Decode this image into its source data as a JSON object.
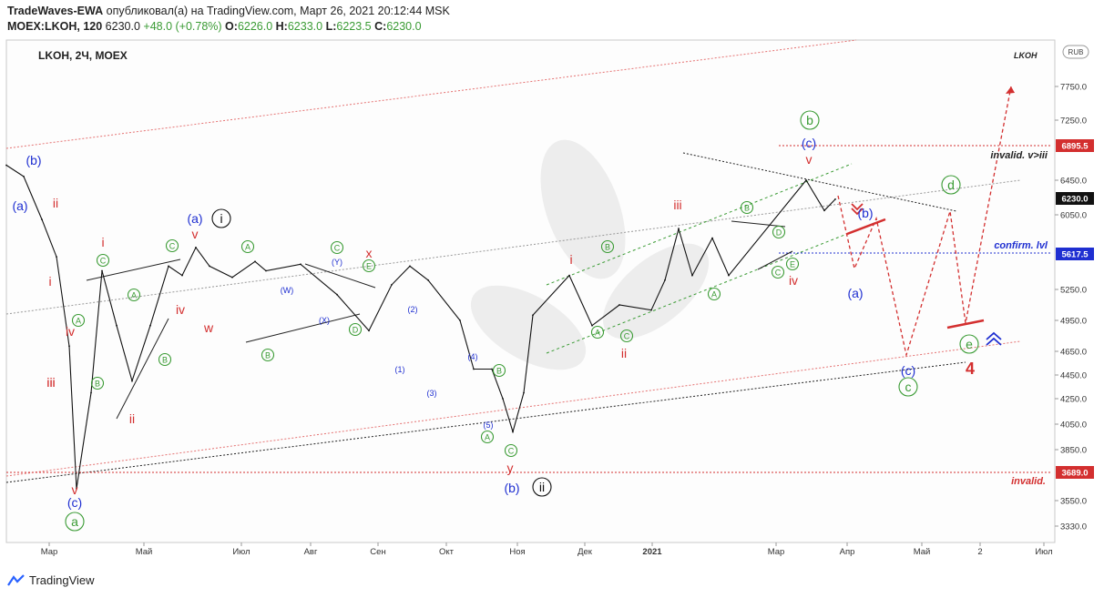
{
  "header": {
    "publisher": "TradeWaves-EWA",
    "published_text": "опубликовал(а) на TradingView.com, Март 26, 2021 20:12:44 MSK",
    "symbol": "MOEX:LKOH, 120",
    "last": "6230.0",
    "change": "+48.0 (+0.78%)",
    "o_label": "O:",
    "o_val": "6226.0",
    "h_label": "H:",
    "h_val": "6233.0",
    "l_label": "L:",
    "l_val": "6223.5",
    "c_label": "C:",
    "c_val": "6230.0"
  },
  "chart_title": "LKOH, 2Ч, MOEX",
  "watermark": "LKOH",
  "currency": "RUB",
  "footer": {
    "brand": "TradingView"
  },
  "colors": {
    "up": "#3a9b34",
    "red": "#d32f2f",
    "blue": "#1f2fd1",
    "green": "#3a9b34"
  },
  "chart_data": {
    "type": "line",
    "series": [
      {
        "values": [
          6650,
          6500,
          6000,
          5600,
          4700,
          3620,
          4300,
          5450,
          4900,
          4400,
          4900,
          5500,
          5400,
          5700,
          5500,
          5380,
          5550,
          5450,
          5520,
          5200,
          4850,
          5300,
          5500,
          5350,
          4950,
          4500,
          4500,
          4250,
          3990,
          4300,
          5000,
          5400,
          4900,
          5100,
          5050,
          5350,
          5900,
          5400,
          5800,
          5400,
          6450,
          6100,
          6230
        ]
      }
    ],
    "y_ticks": [
      "7750.0",
      "7250.0",
      "6450.0",
      "6050.0",
      "5250.0",
      "4950.0",
      "4650.0",
      "4450.0",
      "4250.0",
      "4050.0",
      "3850.0",
      "3550.0",
      "3330.0"
    ],
    "x_ticks": [
      "Мар",
      "Май",
      "Июл",
      "Авг",
      "Сен",
      "Окт",
      "Ноя",
      "Дек",
      "2021",
      "Мар",
      "Апр",
      "Май",
      "2",
      "Июл"
    ],
    "price_tags": [
      {
        "text": "6895.5",
        "color": "#d32f2f"
      },
      {
        "text": "6230.0",
        "color": "#111111"
      },
      {
        "text": "5617.5",
        "color": "#1f2fd1"
      },
      {
        "text": "3689.0",
        "color": "#d32f2f"
      }
    ],
    "level_labels": {
      "invalid_top": "invalid. v>iii",
      "confirm": "confirm. lvl",
      "invalid_bottom": "invalid."
    },
    "annotations": [
      {
        "text": "(b)",
        "color": "blue",
        "circle": false
      },
      {
        "text": "(a)",
        "color": "blue",
        "circle": false
      },
      {
        "text": "ii",
        "color": "red",
        "circle": false
      },
      {
        "text": "i",
        "color": "red",
        "circle": false
      },
      {
        "text": "iv",
        "color": "red",
        "circle": false
      },
      {
        "text": "iii",
        "color": "red",
        "circle": false
      },
      {
        "text": "v",
        "color": "red",
        "circle": false
      },
      {
        "text": "(c)",
        "color": "blue",
        "circle": false
      },
      {
        "text": "a",
        "color": "green",
        "circle": true
      },
      {
        "text": "ii",
        "color": "red",
        "circle": false
      },
      {
        "text": "C",
        "color": "green",
        "circle": true
      },
      {
        "text": "A",
        "color": "green",
        "circle": true
      },
      {
        "text": "B",
        "color": "green",
        "circle": true
      },
      {
        "text": "A",
        "color": "green",
        "circle": true
      },
      {
        "text": "B",
        "color": "green",
        "circle": true
      },
      {
        "text": "i",
        "color": "red",
        "circle": false
      },
      {
        "text": "iii",
        "color": "red",
        "circle": false
      },
      {
        "text": "C",
        "color": "green",
        "circle": true
      },
      {
        "text": "iv",
        "color": "red",
        "circle": false
      },
      {
        "text": "v",
        "color": "red",
        "circle": false
      },
      {
        "text": "(a)",
        "color": "blue",
        "circle": false
      },
      {
        "text": "i",
        "color": "black",
        "circle": true
      },
      {
        "text": "w",
        "color": "red",
        "circle": false
      },
      {
        "text": "A",
        "color": "green",
        "circle": true
      },
      {
        "text": "B",
        "color": "green",
        "circle": true
      },
      {
        "text": "(W)",
        "color": "blue",
        "circle": false
      },
      {
        "text": "(X)",
        "color": "blue",
        "circle": false
      },
      {
        "text": "C",
        "color": "green",
        "circle": true
      },
      {
        "text": "(Y)",
        "color": "blue",
        "circle": false
      },
      {
        "text": "x",
        "color": "red",
        "circle": false
      },
      {
        "text": "E",
        "color": "green",
        "circle": true
      },
      {
        "text": "D",
        "color": "green",
        "circle": true
      },
      {
        "text": "(2)",
        "color": "blue",
        "circle": false
      },
      {
        "text": "(1)",
        "color": "blue",
        "circle": false
      },
      {
        "text": "(3)",
        "color": "blue",
        "circle": false
      },
      {
        "text": "(4)",
        "color": "blue",
        "circle": false
      },
      {
        "text": "(5)",
        "color": "blue",
        "circle": false
      },
      {
        "text": "A",
        "color": "green",
        "circle": true
      },
      {
        "text": "B",
        "color": "green",
        "circle": true
      },
      {
        "text": "C",
        "color": "green",
        "circle": true
      },
      {
        "text": "y",
        "color": "red",
        "circle": false
      },
      {
        "text": "(b)",
        "color": "blue",
        "circle": false
      },
      {
        "text": "ii",
        "color": "black",
        "circle": true
      },
      {
        "text": "i",
        "color": "red",
        "circle": false
      },
      {
        "text": "A",
        "color": "green",
        "circle": true
      },
      {
        "text": "B",
        "color": "green",
        "circle": true
      },
      {
        "text": "C",
        "color": "green",
        "circle": true
      },
      {
        "text": "ii",
        "color": "red",
        "circle": false
      },
      {
        "text": "iii",
        "color": "red",
        "circle": false
      },
      {
        "text": "A",
        "color": "green",
        "circle": true
      },
      {
        "text": "B",
        "color": "green",
        "circle": true
      },
      {
        "text": "C",
        "color": "green",
        "circle": true
      },
      {
        "text": "D",
        "color": "green",
        "circle": true
      },
      {
        "text": "E",
        "color": "green",
        "circle": true
      },
      {
        "text": "iv",
        "color": "red",
        "circle": false
      },
      {
        "text": "b",
        "color": "green",
        "circle": true
      },
      {
        "text": "(c)",
        "color": "blue",
        "circle": false
      },
      {
        "text": "v",
        "color": "red",
        "circle": false
      },
      {
        "text": "(b)",
        "color": "blue",
        "circle": false
      },
      {
        "text": "(a)",
        "color": "blue",
        "circle": false
      },
      {
        "text": "(c)",
        "color": "blue",
        "circle": false
      },
      {
        "text": "c",
        "color": "green",
        "circle": true
      },
      {
        "text": "d",
        "color": "green",
        "circle": true
      },
      {
        "text": "e",
        "color": "green",
        "circle": true
      },
      {
        "text": "4",
        "color": "red",
        "circle": false
      }
    ]
  }
}
